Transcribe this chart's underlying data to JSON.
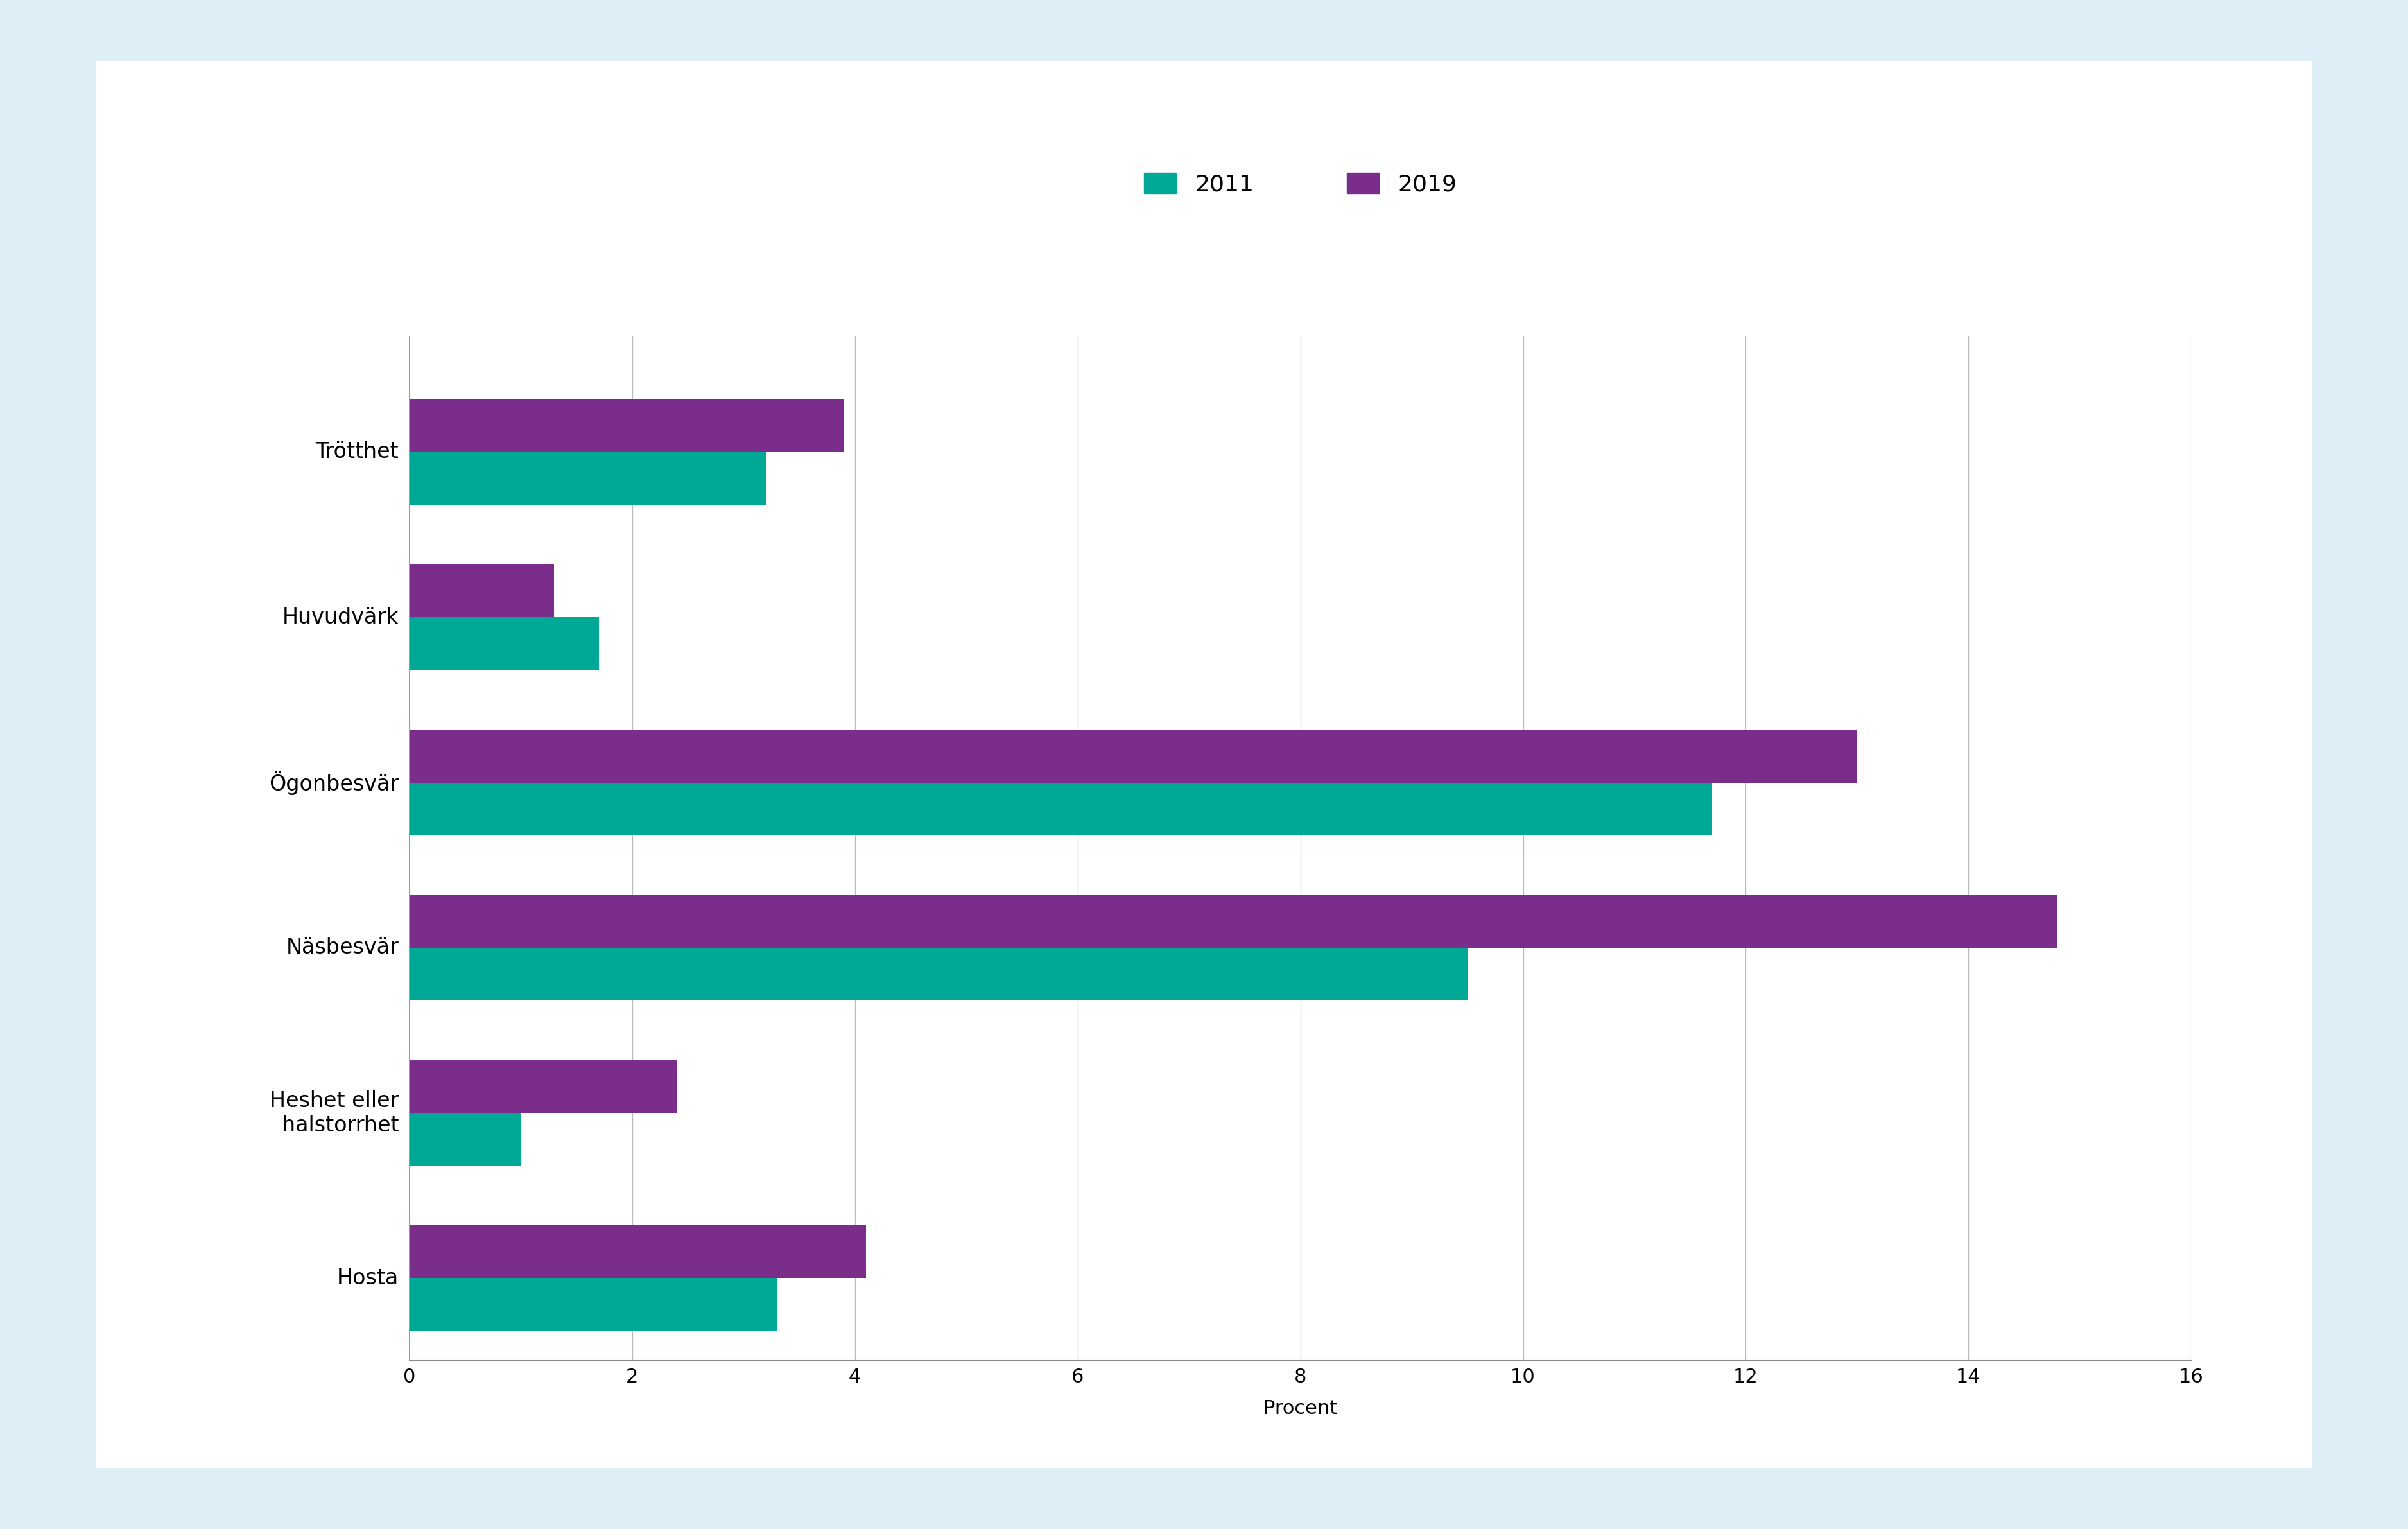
{
  "categories": [
    "Trötthet",
    "Huvudvärk",
    "Ögonbesvär",
    "Näsbesvär",
    "Heshet eller\nhalstorrhet",
    "Hosta"
  ],
  "values_2011": [
    3.2,
    1.7,
    11.7,
    9.5,
    1.0,
    3.3
  ],
  "values_2019": [
    3.9,
    1.3,
    13.0,
    14.8,
    2.4,
    4.1
  ],
  "color_2011": "#00a896",
  "color_2019": "#7b2d8b",
  "legend_labels": [
    "2011",
    "2019"
  ],
  "xlabel": "Procent",
  "xlim": [
    0,
    16
  ],
  "xticks": [
    0,
    2,
    4,
    6,
    8,
    10,
    12,
    14,
    16
  ],
  "background_outer": "#ddeef6",
  "background_inner": "#ffffff",
  "bar_height": 0.32,
  "label_fontsize": 24,
  "tick_fontsize": 22,
  "legend_fontsize": 26,
  "xlabel_fontsize": 22
}
